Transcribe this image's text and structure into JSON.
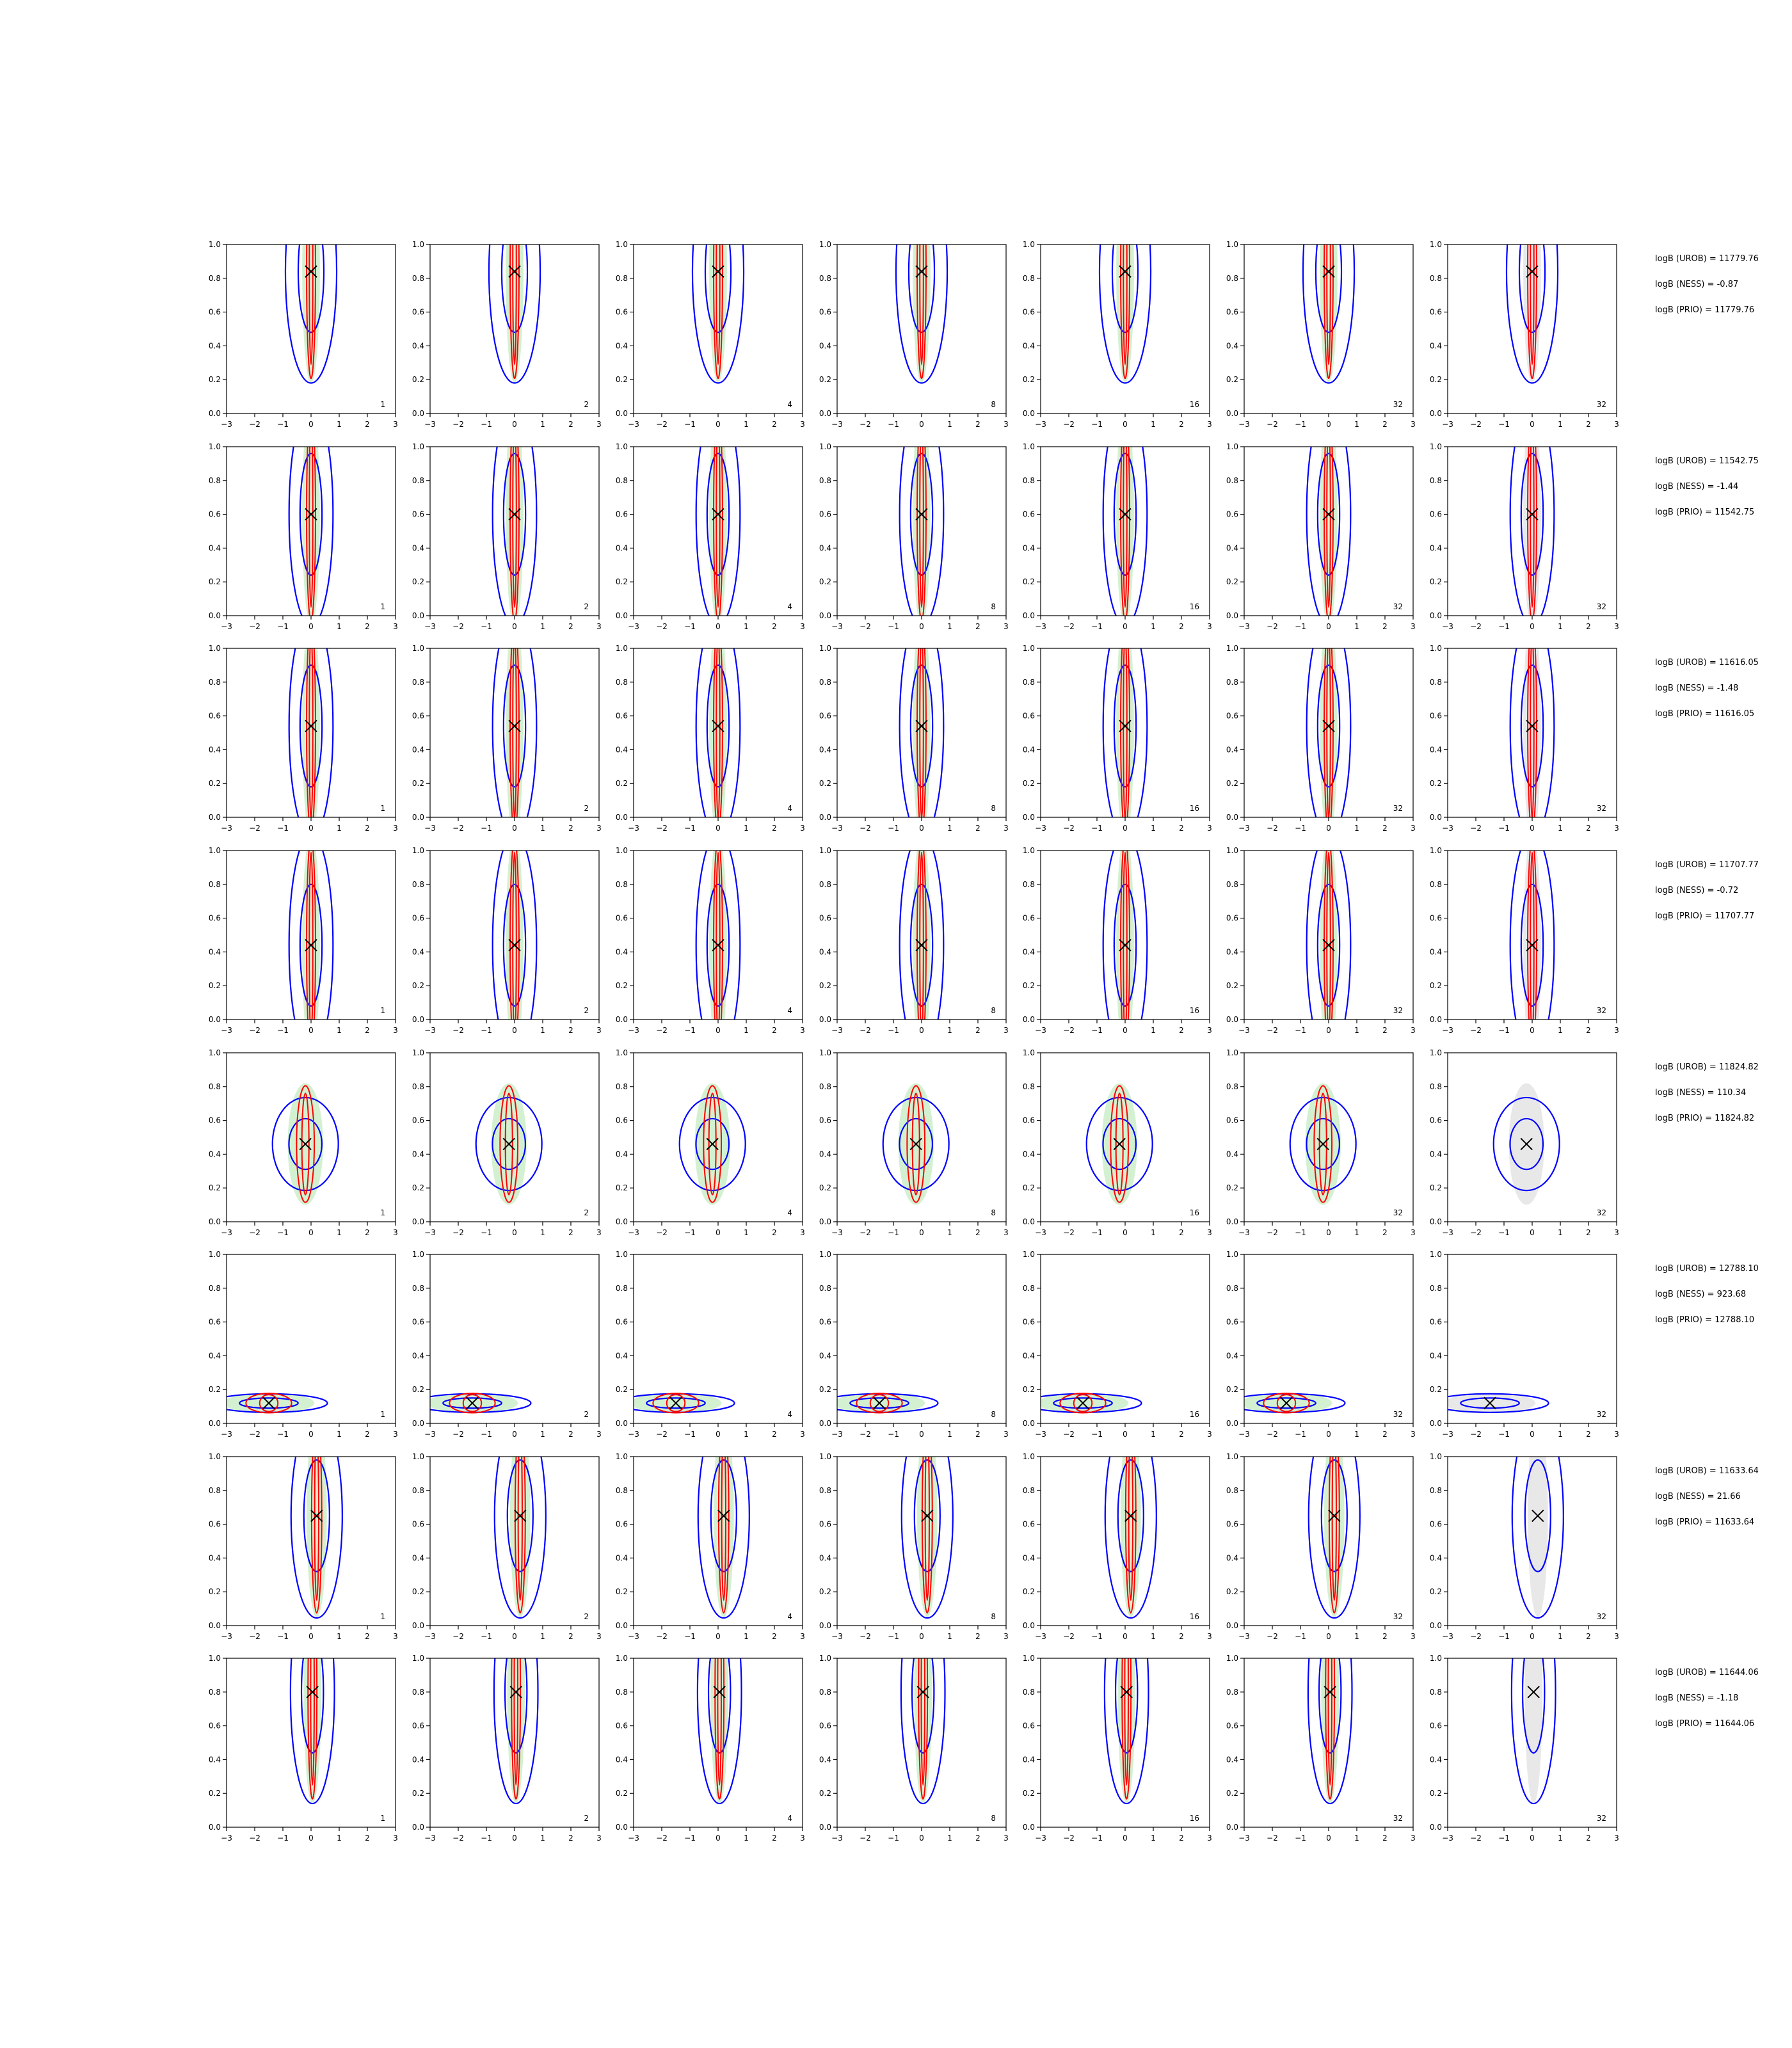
{
  "figure": {
    "rows": [
      {
        "marker": [
          0,
          0.84
        ],
        "stats": [
          "logB (UROB) = 11779.76",
          "logB (NESS) = -0.87",
          "logB (PRIO) = 11779.76"
        ]
      },
      {
        "marker": [
          0,
          0.6
        ],
        "stats": [
          "logB (UROB) = 11542.75",
          "logB (NESS) = -1.44",
          "logB (PRIO) = 11542.75"
        ]
      },
      {
        "marker": [
          0,
          0.54
        ],
        "stats": [
          "logB (UROB) = 11616.05",
          "logB (NESS) = -1.48",
          "logB (PRIO) = 11616.05"
        ]
      },
      {
        "marker": [
          0,
          0.44
        ],
        "stats": [
          "logB (UROB) = 11707.77",
          "logB (NESS) = -0.72",
          "logB (PRIO) = 11707.77"
        ]
      },
      {
        "marker": [
          -0.2,
          0.46
        ],
        "stats": [
          "logB (UROB) = 11824.82",
          "logB (NESS) = 110.34",
          "logB (PRIO) = 11824.82"
        ]
      },
      {
        "marker": [
          -1.5,
          0.12
        ],
        "stats": [
          "logB (UROB) = 12788.10",
          "logB (NESS) = 923.68",
          "logB (PRIO) = 12788.10"
        ]
      },
      {
        "marker": [
          0.2,
          0.65
        ],
        "stats": [
          "logB (UROB) = 11633.64",
          "logB (NESS) = 21.66",
          "logB (PRIO) = 11633.64"
        ]
      },
      {
        "marker": [
          0.05,
          0.8
        ],
        "stats": [
          "logB (UROB) = 11644.06",
          "logB (NESS) = -1.18",
          "logB (PRIO) = 11644.06"
        ]
      }
    ],
    "panel_labels": [
      "1",
      "2",
      "4",
      "8",
      "16",
      "32",
      "32"
    ]
  },
  "chart_data": {
    "type": "contour",
    "layout": "grid 8 rows x 7 columns",
    "xlim": [
      -3,
      3
    ],
    "ylim": [
      0,
      1
    ],
    "x_ticks": [
      "−3",
      "−2",
      "−1",
      "0",
      "1",
      "2",
      "3"
    ],
    "y_ticks": [
      "0.0",
      "0.2",
      "0.4",
      "0.6",
      "0.8",
      "1.0"
    ],
    "colors": {
      "series_a": "#ff0000",
      "series_b": "#0000ff",
      "fill_a": "#c8edc6",
      "fill_b": "#e2e2e2",
      "marker": "#000000"
    },
    "grid": false,
    "note_marker": "x marker at reference point in each panel",
    "row_shapes": [
      {
        "sx": 0.35,
        "sy": 0.55,
        "blue_sx": 0.7,
        "blue_sy": 0.6
      },
      {
        "sx": 0.35,
        "sy": 0.55,
        "blue_sx": 0.6,
        "blue_sy": 0.6
      },
      {
        "sx": 0.35,
        "sy": 0.55,
        "blue_sx": 0.6,
        "blue_sy": 0.6
      },
      {
        "sx": 0.35,
        "sy": 0.55,
        "blue_sx": 0.6,
        "blue_sy": 0.6
      },
      {
        "sx": 0.7,
        "sy": 0.3,
        "blue_sx": 0.9,
        "blue_sy": 0.25
      },
      {
        "sx": 1.8,
        "sy": 0.05,
        "blue_sx": 1.6,
        "blue_sy": 0.05
      },
      {
        "sx": 0.4,
        "sy": 0.5,
        "blue_sx": 0.7,
        "blue_sy": 0.55
      },
      {
        "sx": 0.35,
        "sy": 0.55,
        "blue_sx": 0.6,
        "blue_sy": 0.6
      }
    ]
  }
}
